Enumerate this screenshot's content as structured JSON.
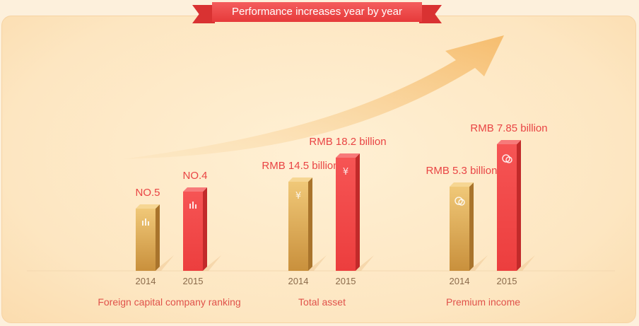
{
  "title": "Performance increases year by year",
  "colors": {
    "bar_2014": "#e2b364",
    "bar_2015": "#f04848",
    "value_text": "#e94444",
    "axis_text": "#e0524a",
    "arrow": "#f7c27a"
  },
  "chart_data": {
    "type": "bar",
    "groups": [
      {
        "label": "Foreign capital company ranking",
        "icon": "bar-chart-icon",
        "bars": [
          {
            "year": "2014",
            "value_label": "NO.5",
            "rank": 5
          },
          {
            "year": "2015",
            "value_label": "NO.4",
            "rank": 4
          }
        ]
      },
      {
        "label": "Total asset",
        "icon": "yen-icon",
        "bars": [
          {
            "year": "2014",
            "value_label": "RMB 14.5 billion",
            "value": 14.5
          },
          {
            "year": "2015",
            "value_label": "RMB 18.2 billion",
            "value": 18.2
          }
        ]
      },
      {
        "label": "Premium income",
        "icon": "coins-icon",
        "bars": [
          {
            "year": "2014",
            "value_label": "RMB 5.3 billion",
            "value": 5.3
          },
          {
            "year": "2015",
            "value_label": "RMB 7.85 billion",
            "value": 7.85
          }
        ]
      }
    ],
    "legend": "none",
    "grid": false
  }
}
